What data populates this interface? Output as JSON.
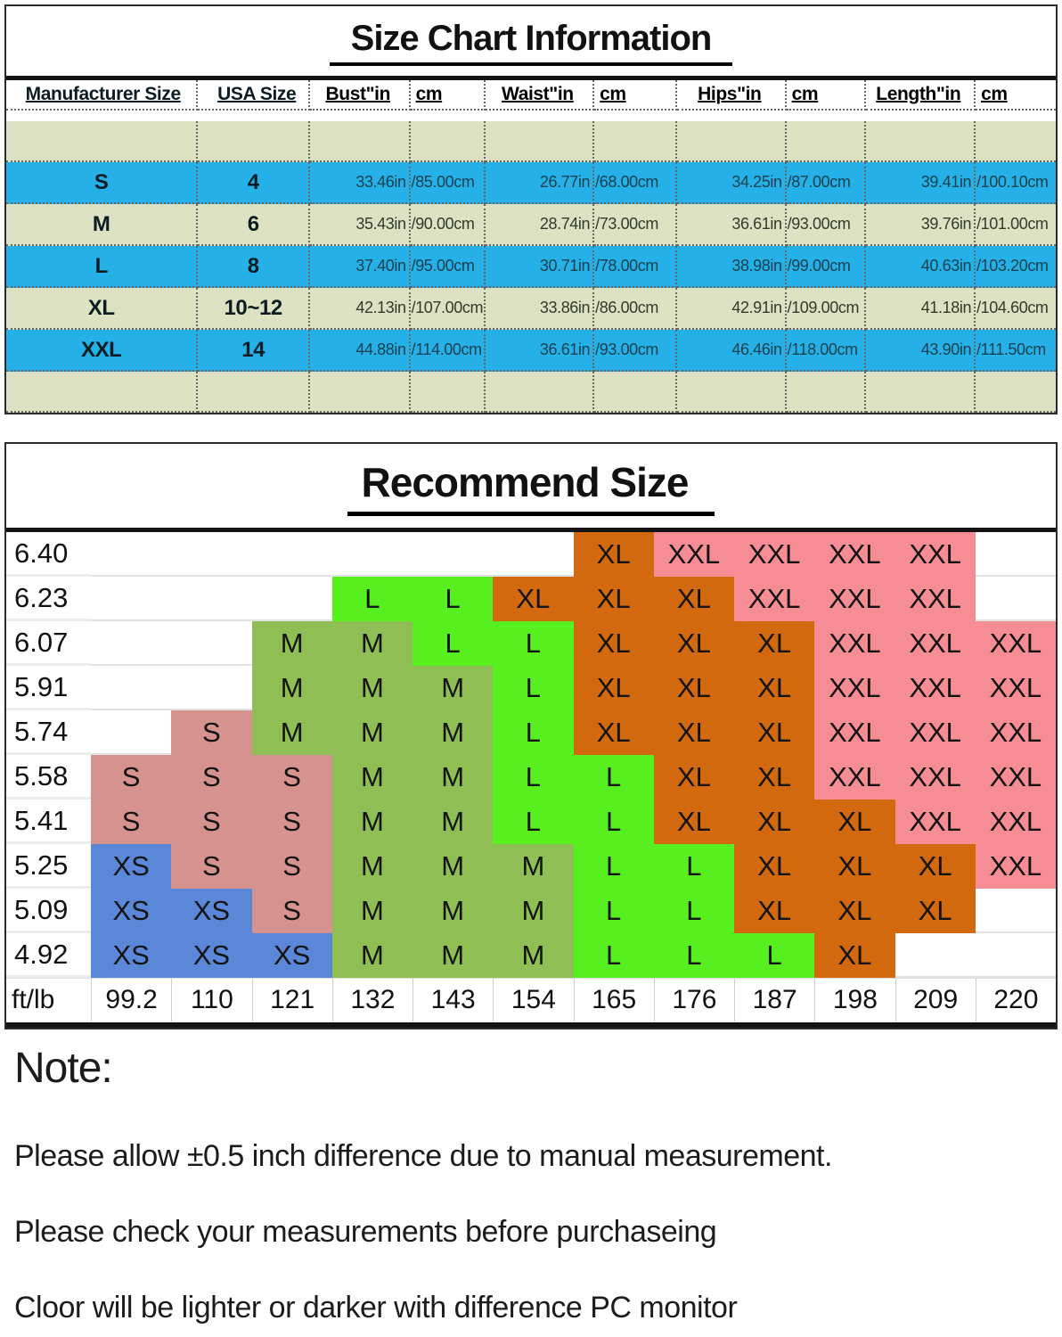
{
  "size_chart": {
    "title": "Size Chart Information",
    "headers": [
      "Manufacturer Size",
      "USA Size",
      "Bust\"in",
      "cm",
      "Waist\"in",
      "cm",
      "Hips\"in",
      "cm",
      "Length\"in",
      "cm"
    ],
    "rows": [
      [
        "S",
        "4",
        "33.46in",
        "/85.00cm",
        "26.77in",
        "/68.00cm",
        "34.25in",
        "/87.00cm",
        "39.41in",
        "/100.10cm"
      ],
      [
        "M",
        "6",
        "35.43in",
        "/90.00cm",
        "28.74in",
        "/73.00cm",
        "36.61in",
        "/93.00cm",
        "39.76in",
        "/101.00cm"
      ],
      [
        "L",
        "8",
        "37.40in",
        "/95.00cm",
        "30.71in",
        "/78.00cm",
        "38.98in",
        "/99.00cm",
        "40.63in",
        "/103.20cm"
      ],
      [
        "XL",
        "10~12",
        "42.13in",
        "/107.00cm",
        "33.86in",
        "/86.00cm",
        "42.91in",
        "/109.00cm",
        "41.18in",
        "/104.60cm"
      ],
      [
        "XXL",
        "14",
        "44.88in",
        "/114.00cm",
        "36.61in",
        "/93.00cm",
        "46.46in",
        "/118.00cm",
        "43.90in",
        "/111.50cm"
      ]
    ],
    "colors": {
      "blue_row": "#25b1e8",
      "pale_row": "#dde3c2"
    }
  },
  "recommend": {
    "title": "Recommend Size",
    "corner_label": "ft/lb",
    "weights": [
      "99.2",
      "110",
      "121",
      "132",
      "143",
      "154",
      "165",
      "176",
      "187",
      "198",
      "209",
      "220"
    ],
    "heights": [
      "6.40",
      "6.23",
      "6.07",
      "5.91",
      "5.74",
      "5.58",
      "5.41",
      "5.25",
      "5.09",
      "4.92"
    ],
    "grid": [
      [
        "",
        "",
        "",
        "",
        "",
        "",
        "XL",
        "XXL",
        "XXL",
        "XXL",
        "XXL",
        ""
      ],
      [
        "",
        "",
        "",
        "L",
        "L",
        "XL",
        "XL",
        "XL",
        "XXL",
        "XXL",
        "XXL",
        ""
      ],
      [
        "",
        "",
        "M",
        "M",
        "L",
        "L",
        "XL",
        "XL",
        "XL",
        "XXL",
        "XXL",
        "XXL"
      ],
      [
        "",
        "",
        "M",
        "M",
        "M",
        "L",
        "XL",
        "XL",
        "XL",
        "XXL",
        "XXL",
        "XXL"
      ],
      [
        "",
        "S",
        "M",
        "M",
        "M",
        "L",
        "XL",
        "XL",
        "XL",
        "XXL",
        "XXL",
        "XXL"
      ],
      [
        "S",
        "S",
        "S",
        "M",
        "M",
        "L",
        "L",
        "XL",
        "XL",
        "XXL",
        "XXL",
        "XXL"
      ],
      [
        "S",
        "S",
        "S",
        "M",
        "M",
        "L",
        "L",
        "XL",
        "XL",
        "XL",
        "XXL",
        "XXL"
      ],
      [
        "XS",
        "S",
        "S",
        "M",
        "M",
        "M",
        "L",
        "L",
        "XL",
        "XL",
        "XL",
        "XXL"
      ],
      [
        "XS",
        "XS",
        "S",
        "M",
        "M",
        "M",
        "L",
        "L",
        "XL",
        "XL",
        "XL",
        ""
      ],
      [
        "XS",
        "XS",
        "XS",
        "M",
        "M",
        "M",
        "L",
        "L",
        "L",
        "XL",
        "",
        ""
      ]
    ],
    "color_map": {
      "XS": "#5b87d8",
      "S": "#d6928f",
      "M": "#8fbe55",
      "L": "#57ef1f",
      "XL": "#d2690e",
      "XXL": "#f68d95"
    }
  },
  "note": {
    "title": "Note:",
    "lines": [
      "Please allow ±0.5 inch difference due to manual measurement.",
      "Please check your measurements before purchaseing",
      "Cloor will be lighter or darker with difference PC monitor"
    ]
  },
  "chart_data": [
    {
      "type": "table",
      "title": "Size Chart Information",
      "columns": [
        "Manufacturer Size",
        "USA Size",
        "Bust\"in",
        "cm",
        "Waist\"in",
        "cm",
        "Hips\"in",
        "cm",
        "Length\"in",
        "cm"
      ],
      "rows": [
        [
          "S",
          "4",
          "33.46in",
          "/85.00cm",
          "26.77in",
          "/68.00cm",
          "34.25in",
          "/87.00cm",
          "39.41in",
          "/100.10cm"
        ],
        [
          "M",
          "6",
          "35.43in",
          "/90.00cm",
          "28.74in",
          "/73.00cm",
          "36.61in",
          "/93.00cm",
          "39.76in",
          "/101.00cm"
        ],
        [
          "L",
          "8",
          "37.40in",
          "/95.00cm",
          "30.71in",
          "/78.00cm",
          "38.98in",
          "/99.00cm",
          "40.63in",
          "/103.20cm"
        ],
        [
          "XL",
          "10~12",
          "42.13in",
          "/107.00cm",
          "33.86in",
          "/86.00cm",
          "42.91in",
          "/109.00cm",
          "41.18in",
          "/104.60cm"
        ],
        [
          "XXL",
          "14",
          "44.88in",
          "/114.00cm",
          "36.61in",
          "/93.00cm",
          "46.46in",
          "/118.00cm",
          "43.90in",
          "/111.50cm"
        ]
      ]
    },
    {
      "type": "heatmap",
      "title": "Recommend Size",
      "xlabel": "lb",
      "ylabel": "ft",
      "x": [
        99.2,
        110,
        121,
        132,
        143,
        154,
        165,
        176,
        187,
        198,
        209,
        220
      ],
      "y": [
        6.4,
        6.23,
        6.07,
        5.91,
        5.74,
        5.58,
        5.41,
        5.25,
        5.09,
        4.92
      ],
      "cells": [
        [
          "",
          "",
          "",
          "",
          "",
          "",
          "XL",
          "XXL",
          "XXL",
          "XXL",
          "XXL",
          ""
        ],
        [
          "",
          "",
          "",
          "L",
          "L",
          "XL",
          "XL",
          "XL",
          "XXL",
          "XXL",
          "XXL",
          ""
        ],
        [
          "",
          "",
          "M",
          "M",
          "L",
          "L",
          "XL",
          "XL",
          "XL",
          "XXL",
          "XXL",
          "XXL"
        ],
        [
          "",
          "",
          "M",
          "M",
          "M",
          "L",
          "XL",
          "XL",
          "XL",
          "XXL",
          "XXL",
          "XXL"
        ],
        [
          "",
          "S",
          "M",
          "M",
          "M",
          "L",
          "XL",
          "XL",
          "XL",
          "XXL",
          "XXL",
          "XXL"
        ],
        [
          "S",
          "S",
          "S",
          "M",
          "M",
          "L",
          "L",
          "XL",
          "XL",
          "XXL",
          "XXL",
          "XXL"
        ],
        [
          "S",
          "S",
          "S",
          "M",
          "M",
          "L",
          "L",
          "XL",
          "XL",
          "XL",
          "XXL",
          "XXL"
        ],
        [
          "XS",
          "S",
          "S",
          "M",
          "M",
          "M",
          "L",
          "L",
          "XL",
          "XL",
          "XL",
          "XXL"
        ],
        [
          "XS",
          "XS",
          "S",
          "M",
          "M",
          "M",
          "L",
          "L",
          "XL",
          "XL",
          "XL",
          ""
        ],
        [
          "XS",
          "XS",
          "XS",
          "M",
          "M",
          "M",
          "L",
          "L",
          "L",
          "XL",
          "",
          ""
        ]
      ],
      "legend": {
        "XS": "#5b87d8",
        "S": "#d6928f",
        "M": "#8fbe55",
        "L": "#57ef1f",
        "XL": "#d2690e",
        "XXL": "#f68d95"
      }
    }
  ]
}
